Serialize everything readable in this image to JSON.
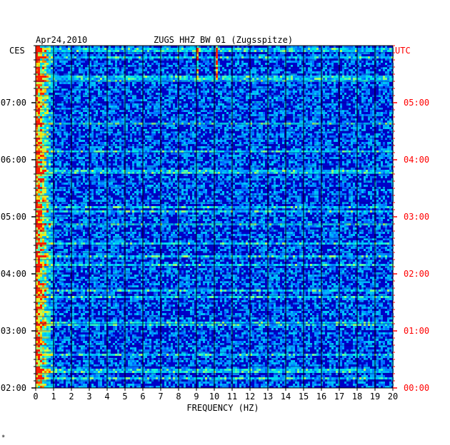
{
  "header": {
    "date": "Apr24,2010",
    "station": "ZUGS HHZ BW 01 (Zugsspitze)",
    "left_zone": "CES",
    "right_zone": "UTC"
  },
  "footnote": "*",
  "colors": {
    "left_axis": "#000000",
    "right_axis": "#ff0000",
    "background": "#0000c8"
  },
  "chart_data": {
    "type": "heatmap",
    "xlabel": "FREQUENCY (HZ)",
    "xlim": [
      0,
      20
    ],
    "x_ticks": [
      "0",
      "1",
      "2",
      "3",
      "4",
      "5",
      "6",
      "7",
      "8",
      "9",
      "10",
      "11",
      "12",
      "13",
      "14",
      "15",
      "16",
      "17",
      "18",
      "19",
      "20"
    ],
    "left_time_labels": [
      "07:00",
      "06:00",
      "05:00",
      "04:00",
      "03:00",
      "02:00"
    ],
    "right_time_labels": [
      "05:00",
      "04:00",
      "03:00",
      "02:00",
      "01:00",
      "00:00"
    ],
    "time_range_utc": [
      "00:00",
      "06:00"
    ],
    "colormap": "blue-cyan-yellow-red",
    "features": [
      {
        "freq_hz": 0.5,
        "description": "strong low-frequency energy"
      },
      {
        "freq_hz": 9.0,
        "description": "narrow band near top"
      },
      {
        "freq_hz": 10.1,
        "description": "narrow band near top"
      }
    ]
  }
}
